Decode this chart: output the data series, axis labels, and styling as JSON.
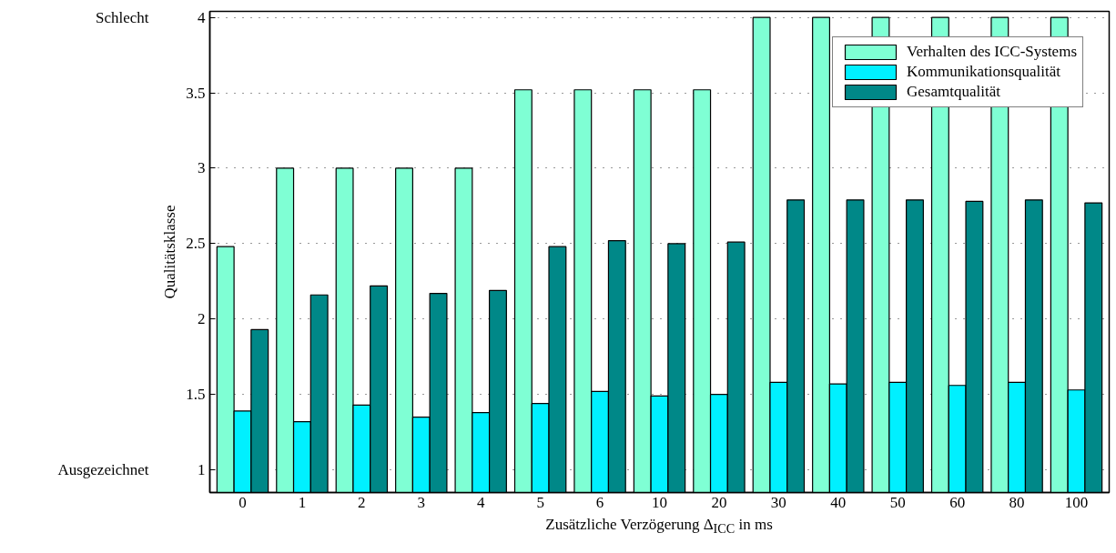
{
  "chart_data": {
    "type": "bar",
    "xlabel": "Zusätzliche Verzögerung Δ$_{ICC}$ in ms",
    "ylabel": "Qualitätsklasse",
    "categories": [
      "0",
      "1",
      "2",
      "3",
      "4",
      "5",
      "6",
      "10",
      "20",
      "30",
      "40",
      "50",
      "60",
      "80",
      "100"
    ],
    "series": [
      {
        "name": "Verhalten des ICC-Systems",
        "color": "#7fffd4",
        "values": [
          2.48,
          3,
          3,
          3,
          3,
          3.52,
          3.52,
          3.52,
          3.52,
          4,
          4,
          4,
          4,
          4,
          4
        ]
      },
      {
        "name": "Kommunikationsqualität",
        "color": "#00f0ff",
        "values": [
          1.39,
          1.32,
          1.43,
          1.35,
          1.38,
          1.44,
          1.52,
          1.49,
          1.5,
          1.58,
          1.57,
          1.58,
          1.56,
          1.58,
          1.53
        ]
      },
      {
        "name": "Gesamtqualität",
        "color": "#008888",
        "values": [
          1.93,
          2.16,
          2.22,
          2.17,
          2.19,
          2.48,
          2.52,
          2.5,
          2.51,
          2.79,
          2.79,
          2.79,
          2.78,
          2.79,
          2.77
        ]
      }
    ],
    "ylim": [
      0.85,
      4.04
    ],
    "yticks": [
      1,
      1.5,
      2,
      2.5,
      3,
      3.5,
      4
    ],
    "grid": "y",
    "legend": "top right",
    "annotations": [
      "Schlecht",
      "Ausgezeichnet"
    ]
  }
}
